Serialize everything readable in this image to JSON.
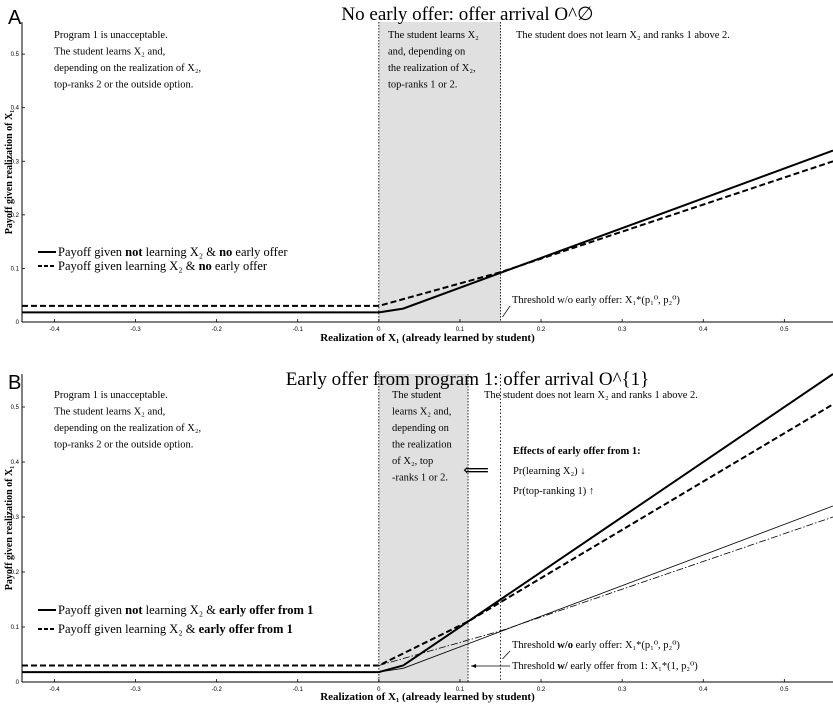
{
  "colors": {
    "shade": "#e0e0e0",
    "line": "#111111"
  },
  "chart_data": [
    {
      "panel_label": "A",
      "type": "line",
      "title": "No early offer: offer arrival O^∅",
      "xlabel": "Realization of X₁ (already learned by student)",
      "ylabel": "Payoff given realization of X₁",
      "xlim": [
        -0.44,
        0.56
      ],
      "ylim": [
        0,
        0.56
      ],
      "x_ticks": [
        "-0.4",
        "-0.3",
        "-0.2",
        "-0.1",
        "0",
        "0.1",
        "0.2",
        "0.3",
        "0.4",
        "0.5"
      ],
      "x_tick_values": [
        -0.4,
        -0.3,
        -0.2,
        -0.1,
        0,
        0.1,
        0.2,
        0.3,
        0.4,
        0.5
      ],
      "y_ticks": [
        "0",
        "0.1",
        "0.2",
        "0.3",
        "0.4",
        "0.5"
      ],
      "y_tick_values": [
        0,
        0.1,
        0.2,
        0.3,
        0.4,
        0.5
      ],
      "shaded_region": [
        0,
        0.15
      ],
      "series": [
        {
          "name": "Payoff given not learning X₂ & no early offer",
          "style": "solid-thick",
          "x": [
            -0.44,
            0,
            0.03,
            0.56
          ],
          "y": [
            0.018,
            0.018,
            0.025,
            0.32
          ]
        },
        {
          "name": "Payoff given learning X₂ & no early offer",
          "style": "dashed-thick",
          "x": [
            -0.44,
            0,
            0.15,
            0.56
          ],
          "y": [
            0.03,
            0.03,
            0.093,
            0.3
          ]
        }
      ],
      "legend": [
        {
          "parts": [
            "Payoff given ",
            "not",
            " learning X₂ & ",
            "no",
            " early offer"
          ]
        },
        {
          "parts": [
            "Payoff given learning X₂ & ",
            "no",
            " early offer"
          ]
        }
      ],
      "region_texts": [
        [
          "Program 1 is unacceptable.",
          "The student learns X₂ and,",
          "depending on the realization of X₂,",
          "top-ranks 2 or the outside option."
        ],
        [
          "The student learns X₂",
          "and, depending on",
          "the realization of X₂,",
          "top-ranks 1 or 2."
        ],
        [
          "The student does not learn X₂ and ranks 1 above 2."
        ]
      ],
      "annotations": [
        {
          "bold": "",
          "text": "Threshold w/o early offer:  X₁*(p₁⁰, p₂⁰)"
        }
      ]
    },
    {
      "panel_label": "B",
      "type": "line",
      "title": "Early offer from program 1: offer arrival O^{1}",
      "xlabel": "Realization of X₁ (already learned by student)",
      "ylabel": "Payoff given realization of X₁",
      "xlim": [
        -0.44,
        0.56
      ],
      "ylim": [
        0,
        0.56
      ],
      "x_ticks": [
        "-0.4",
        "-0.3",
        "-0.2",
        "-0.1",
        "0",
        "0.1",
        "0.2",
        "0.3",
        "0.4",
        "0.5"
      ],
      "x_tick_values": [
        -0.4,
        -0.3,
        -0.2,
        -0.1,
        0,
        0.1,
        0.2,
        0.3,
        0.4,
        0.5
      ],
      "y_ticks": [
        "0",
        "0.1",
        "0.2",
        "0.3",
        "0.4",
        "0.5"
      ],
      "y_tick_values": [
        0,
        0.1,
        0.2,
        0.3,
        0.4,
        0.5
      ],
      "shaded_region": [
        0,
        0.11
      ],
      "series": [
        {
          "name": "Payoff given not learning X₂ & early offer from 1",
          "style": "solid-thick",
          "x": [
            -0.44,
            0,
            0.03,
            0.56
          ],
          "y": [
            0.018,
            0.018,
            0.03,
            0.56
          ]
        },
        {
          "name": "Payoff given learning X₂ & early offer from 1",
          "style": "dashed-thick",
          "x": [
            -0.44,
            0,
            0.11,
            0.56
          ],
          "y": [
            0.03,
            0.03,
            0.11,
            0.505
          ]
        },
        {
          "name": "",
          "style": "solid-thin",
          "x": [
            0,
            0.03,
            0.56
          ],
          "y": [
            0.018,
            0.025,
            0.32
          ]
        },
        {
          "name": "",
          "style": "dashdot-thin",
          "x": [
            0,
            0.15,
            0.56
          ],
          "y": [
            0.03,
            0.093,
            0.3
          ]
        }
      ],
      "legend": [
        {
          "parts": [
            "Payoff given ",
            "not",
            " learning X₂ & ",
            "early offer from 1",
            ""
          ]
        },
        {
          "parts": [
            "Payoff given learning X₂ & ",
            "early offer from 1",
            ""
          ]
        }
      ],
      "region_texts": [
        [
          "Program 1 is unacceptable.",
          "The student learns X₂ and,",
          "depending on the realization of X₂,",
          "top-ranks 2 or the outside option."
        ],
        [
          "The student",
          "learns X₂ and,",
          "depending on",
          "the realization",
          "of X₂, top",
          "-ranks 1 or 2."
        ],
        [
          "The student does not learn X₂ and ranks 1 above 2."
        ]
      ],
      "effects": {
        "title": "Effects of early offer from 1:",
        "lines": [
          "Pr(learning X₂)  ↓",
          "Pr(top-ranking 1) ↑"
        ],
        "arrow": "⟸"
      },
      "annotations": [
        {
          "bold": "w/o",
          "text": "Threshold w/o early offer:       X₁*(p₁⁰, p₂⁰)"
        },
        {
          "bold": "w/",
          "text": "Threshold w/ early offer from 1: X₁*(1, p₂⁰)"
        }
      ]
    }
  ]
}
